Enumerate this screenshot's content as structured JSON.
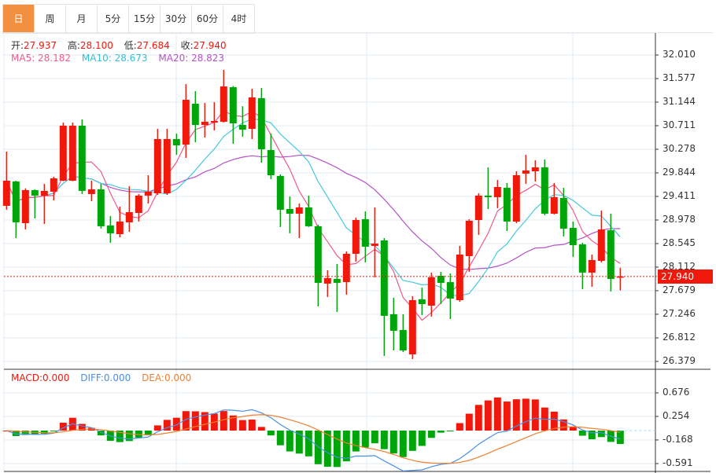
{
  "tabs": [
    "日",
    "周",
    "月",
    "5分",
    "15分",
    "30分",
    "60分",
    "4时"
  ],
  "active_tab": 0,
  "info": {
    "open_label": "开:",
    "open": "27.937",
    "high_label": "高:",
    "high": "28.100",
    "low_label": "低:",
    "low": "27.684",
    "close_label": "收:",
    "close": "27.940"
  },
  "ma": {
    "ma5": "MA5: 28.182",
    "ma10": "MA10: 28.673",
    "ma20": "MA20: 28.823"
  },
  "macd": {
    "macd": "MACD:0.000",
    "diff": "DIFF:0.000",
    "dea": "DEA:0.000"
  },
  "last_price": "27.940",
  "colors": {
    "up": "#f0170b",
    "down": "#00a50a",
    "ma5": "#ee5a8c",
    "ma10": "#46c8dc",
    "ma20": "#b452c8",
    "diff": "#4a90e2",
    "dea": "#f08030",
    "accent": "#f39040"
  },
  "chart_data": {
    "type": "candlestick",
    "price_ticks": [
      "32.010",
      "31.577",
      "31.144",
      "30.711",
      "30.278",
      "29.844",
      "29.411",
      "28.978",
      "28.545",
      "28.112",
      "27.679",
      "27.246",
      "26.812",
      "26.379"
    ],
    "price_range": [
      26.379,
      32.01
    ],
    "macd_ticks": [
      "0.676",
      "0.254",
      "-0.168",
      "-0.591"
    ],
    "macd_range": [
      -0.591,
      0.676
    ],
    "candles_ohlc": [
      [
        29.238,
        30.234,
        29.166,
        29.7
      ],
      [
        29.686,
        29.7,
        28.646,
        28.935
      ],
      [
        28.92,
        29.56,
        28.805,
        29.527
      ],
      [
        29.527,
        29.54,
        29.007,
        29.426
      ],
      [
        29.426,
        29.642,
        28.906,
        29.512
      ],
      [
        29.498,
        29.772,
        29.339,
        29.743
      ],
      [
        29.7,
        30.768,
        29.69,
        30.711
      ],
      [
        29.7,
        30.768,
        29.69,
        30.711
      ],
      [
        30.711,
        30.826,
        29.455,
        29.513
      ],
      [
        29.455,
        29.7,
        29.325,
        29.541
      ],
      [
        29.541,
        29.642,
        28.82,
        28.863
      ],
      [
        28.877,
        29.05,
        28.559,
        28.733
      ],
      [
        28.718,
        29.223,
        28.66,
        28.949
      ],
      [
        28.935,
        29.599,
        28.761,
        29.122
      ],
      [
        29.108,
        29.455,
        28.949,
        29.426
      ],
      [
        29.426,
        29.801,
        29.281,
        29.498
      ],
      [
        29.469,
        30.653,
        29.44,
        30.465
      ],
      [
        29.469,
        30.653,
        29.44,
        30.465
      ],
      [
        30.465,
        30.566,
        30.176,
        30.35
      ],
      [
        30.364,
        31.476,
        30.119,
        31.187
      ],
      [
        31.115,
        31.346,
        30.407,
        30.725
      ],
      [
        30.725,
        31.129,
        30.494,
        30.783
      ],
      [
        30.768,
        31.144,
        30.624,
        30.797
      ],
      [
        30.783,
        31.736,
        30.77,
        31.432
      ],
      [
        31.418,
        31.44,
        30.379,
        30.754
      ],
      [
        30.725,
        31.07,
        30.508,
        30.638
      ],
      [
        30.653,
        31.389,
        30.465,
        31.23
      ],
      [
        31.216,
        31.404,
        30.032,
        30.277
      ],
      [
        30.263,
        30.566,
        29.729,
        29.801
      ],
      [
        29.787,
        29.816,
        28.848,
        29.166
      ],
      [
        29.18,
        29.411,
        28.733,
        29.094
      ],
      [
        29.094,
        29.281,
        28.646,
        29.209
      ],
      [
        29.209,
        29.426,
        28.85,
        28.863
      ],
      [
        28.863,
        28.89,
        27.39,
        27.823
      ],
      [
        27.809,
        28.054,
        27.563,
        27.91
      ],
      [
        27.895,
        28.17,
        27.289,
        27.823
      ],
      [
        27.837,
        28.4,
        27.606,
        28.357
      ],
      [
        28.357,
        29.02,
        28.213,
        28.978
      ],
      [
        28.993,
        29.137,
        28.198,
        28.487
      ],
      [
        28.502,
        29.209,
        27.924,
        28.545
      ],
      [
        28.603,
        28.646,
        26.48,
        27.217
      ],
      [
        27.246,
        27.549,
        26.581,
        26.942
      ],
      [
        26.957,
        27.246,
        26.552,
        26.581
      ],
      [
        26.509,
        27.578,
        26.422,
        27.505
      ],
      [
        27.52,
        27.736,
        27.231,
        27.433
      ],
      [
        27.404,
        28.011,
        27.202,
        27.924
      ],
      [
        27.953,
        28.025,
        27.433,
        27.823
      ],
      [
        27.837,
        27.996,
        27.159,
        27.534
      ],
      [
        27.505,
        28.502,
        27.477,
        28.343
      ],
      [
        28.314,
        28.993,
        28.025,
        28.964
      ],
      [
        28.978,
        29.469,
        28.704,
        29.426
      ],
      [
        29.426,
        29.945,
        29.18,
        29.397
      ],
      [
        29.397,
        29.714,
        29.195,
        29.584
      ],
      [
        29.57,
        29.657,
        28.776,
        28.949
      ],
      [
        28.949,
        29.873,
        28.92,
        29.801
      ],
      [
        29.83,
        30.176,
        29.642,
        29.888
      ],
      [
        29.873,
        30.075,
        29.685,
        29.945
      ],
      [
        29.945,
        30.09,
        29.065,
        29.094
      ],
      [
        29.094,
        29.657,
        29.08,
        29.397
      ],
      [
        29.382,
        29.57,
        28.675,
        28.819
      ],
      [
        28.834,
        28.949,
        28.3,
        28.516
      ],
      [
        28.53,
        28.559,
        27.707,
        28.011
      ],
      [
        28.011,
        28.343,
        27.751,
        28.242
      ],
      [
        28.227,
        29.151,
        28.198,
        28.805
      ],
      [
        28.79,
        29.094,
        27.664,
        27.895
      ],
      [
        27.937,
        28.1,
        27.684,
        27.94
      ]
    ],
    "indicators": [
      "MA5",
      "MA10",
      "MA20",
      "MACD(12,26,9)"
    ]
  }
}
